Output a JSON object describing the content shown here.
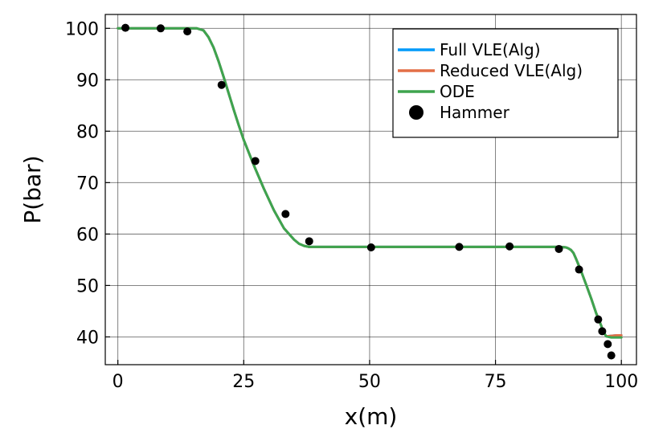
{
  "chart_data": {
    "type": "line",
    "title": "",
    "xlabel": "x(m)",
    "ylabel": "P(bar)",
    "xlim": [
      -2.5,
      103
    ],
    "ylim": [
      34.6,
      102.7
    ],
    "xticks": [
      0,
      25,
      50,
      75,
      100
    ],
    "yticks": [
      40,
      50,
      60,
      70,
      80,
      90,
      100
    ],
    "xtick_labels": [
      "0",
      "25",
      "50",
      "75",
      "100"
    ],
    "ytick_labels": [
      "40",
      "50",
      "60",
      "70",
      "80",
      "90",
      "100"
    ],
    "grid": true,
    "legend_position": "top-right",
    "series": [
      {
        "name": "Full VLE(Alg)",
        "kind": "line",
        "color": "#009AFA",
        "x": [
          0,
          15.7,
          17,
          18,
          19,
          20,
          21,
          22,
          23,
          24,
          25,
          27,
          29,
          31,
          33,
          35,
          36,
          37,
          38,
          50,
          75,
          88,
          89,
          89.5,
          90,
          90.5,
          91,
          92,
          93,
          94,
          95,
          96,
          96.3,
          96.6,
          97,
          98,
          99,
          100
        ],
        "y": [
          100,
          100,
          99.6,
          98.3,
          96.3,
          93.6,
          90.6,
          87.4,
          84.2,
          81.2,
          78.3,
          73.4,
          68.8,
          64.6,
          61.1,
          58.9,
          58.1,
          57.7,
          57.5,
          57.5,
          57.5,
          57.5,
          57.4,
          57.2,
          56.9,
          56.3,
          55.2,
          52.8,
          50.2,
          47.5,
          44.6,
          42.2,
          41.3,
          40.7,
          40.1,
          40.2,
          40.3,
          40.3
        ]
      },
      {
        "name": "Reduced VLE(Alg)",
        "kind": "line",
        "color": "#E36F47",
        "x": [
          0,
          15.7,
          17,
          18,
          19,
          20,
          21,
          22,
          23,
          24,
          25,
          27,
          29,
          31,
          33,
          35,
          36,
          37,
          38,
          50,
          75,
          88,
          89,
          89.5,
          90,
          90.5,
          91,
          92,
          93,
          94,
          95,
          96,
          96.3,
          96.6,
          97,
          98,
          99,
          100
        ],
        "y": [
          100,
          100,
          99.6,
          98.3,
          96.3,
          93.6,
          90.6,
          87.4,
          84.2,
          81.2,
          78.3,
          73.4,
          68.8,
          64.6,
          61.1,
          58.9,
          58.1,
          57.7,
          57.5,
          57.5,
          57.5,
          57.5,
          57.4,
          57.2,
          56.9,
          56.3,
          55.2,
          52.8,
          50.2,
          47.5,
          44.6,
          42.2,
          41.3,
          40.7,
          40.1,
          40.2,
          40.3,
          40.3
        ]
      },
      {
        "name": "ODE",
        "kind": "line",
        "color": "#3EA44E",
        "x": [
          0,
          15.7,
          17,
          18,
          19,
          20,
          21,
          22,
          23,
          24,
          25,
          27,
          29,
          31,
          33,
          35,
          36,
          37,
          38,
          50,
          75,
          88,
          89,
          89.5,
          90,
          90.5,
          91,
          92,
          93,
          94,
          95,
          96,
          96.3,
          96.6,
          97,
          98,
          99,
          100
        ],
        "y": [
          100,
          100,
          99.6,
          98.3,
          96.3,
          93.6,
          90.6,
          87.4,
          84.2,
          81.2,
          78.3,
          73.4,
          68.8,
          64.6,
          61.1,
          58.9,
          58.1,
          57.7,
          57.5,
          57.5,
          57.5,
          57.5,
          57.4,
          57.2,
          56.9,
          56.3,
          55.2,
          52.8,
          50.2,
          47.5,
          44.6,
          42.2,
          41.3,
          40.7,
          40.1,
          39.9,
          39.9,
          39.9
        ]
      },
      {
        "name": "Hammer",
        "kind": "scatter",
        "color": "#000000",
        "x": [
          1.5,
          8.5,
          13.8,
          20.6,
          27.3,
          33.3,
          38.0,
          50.3,
          67.8,
          77.8,
          87.6,
          91.6,
          95.4,
          96.2,
          97.3,
          98.0
        ],
        "y": [
          100.1,
          100.0,
          99.4,
          89.0,
          74.2,
          63.9,
          58.6,
          57.4,
          57.5,
          57.6,
          57.1,
          53.1,
          43.4,
          41.1,
          38.6,
          36.4
        ]
      }
    ]
  }
}
